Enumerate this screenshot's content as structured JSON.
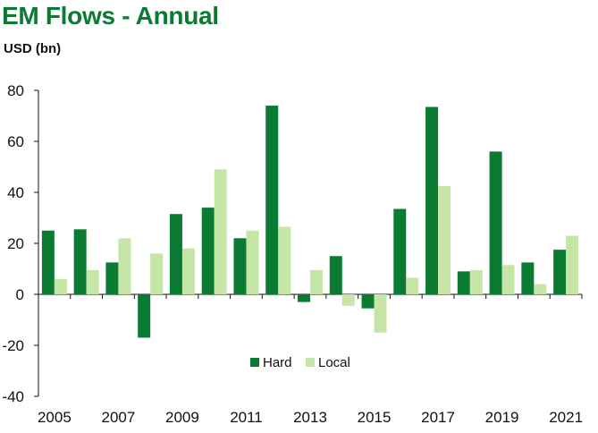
{
  "title": "EM Flows - Annual",
  "unit_label": "USD (bn)",
  "colors": {
    "hard": "#0b7a33",
    "local": "#c6e6a8",
    "axis": "#111111"
  },
  "chart_data": {
    "type": "bar",
    "title": "EM Flows - Annual",
    "ylabel": "USD (bn)",
    "xlabel": "",
    "ylim": [
      -40,
      80
    ],
    "yticks": [
      80,
      60,
      40,
      20,
      0,
      -20,
      -40
    ],
    "categories": [
      "2005",
      "2006",
      "2007",
      "2008",
      "2009",
      "2010",
      "2011",
      "2012",
      "2013",
      "2014",
      "2015",
      "2016",
      "2017",
      "2018",
      "2019",
      "2020",
      "2021"
    ],
    "xtick_labels": [
      "2005",
      "2007",
      "2009",
      "2011",
      "2013",
      "2015",
      "2017",
      "2019",
      "2021"
    ],
    "series": [
      {
        "name": "Hard",
        "values": [
          25,
          25.5,
          12.5,
          -17,
          31.5,
          34,
          22,
          74,
          -3,
          15,
          -5.5,
          33.5,
          73.5,
          9,
          56,
          12.5,
          17.5
        ]
      },
      {
        "name": "Local",
        "values": [
          6,
          9.5,
          22,
          16,
          18,
          49,
          25,
          26.5,
          9.5,
          -4.5,
          -15,
          6.5,
          42.5,
          9.5,
          11.5,
          4,
          23
        ]
      }
    ],
    "legend_position": "bottom-center",
    "grid": false
  }
}
